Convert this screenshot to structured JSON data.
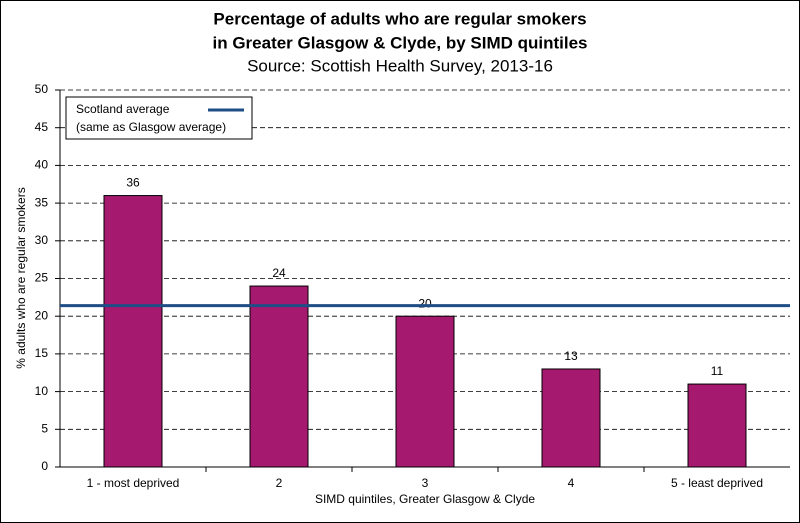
{
  "chart_data": {
    "type": "bar",
    "title": [
      "Percentage of adults who are regular smokers",
      "in Greater Glasgow & Clyde, by SIMD quintiles"
    ],
    "subtitle": "Source: Scottish Health Survey, 2013-16",
    "x_label": "SIMD quintiles, Greater Glasgow & Clyde",
    "y_label": "% adults who are regular smokers",
    "categories": [
      "1 - most deprived",
      "2",
      "3",
      "4",
      "5 - least deprived"
    ],
    "values": [
      36,
      24,
      20,
      13,
      11
    ],
    "color": "#a5196e",
    "reference_line": {
      "label": [
        "Scotland average",
        "(same as Glasgow average)"
      ],
      "value": 21.4,
      "color": "#1f4e87"
    },
    "ylim": [
      0,
      50
    ],
    "yticks": [
      0,
      5,
      10,
      15,
      20,
      25,
      30,
      35,
      40,
      45,
      50
    ],
    "grid": true
  }
}
